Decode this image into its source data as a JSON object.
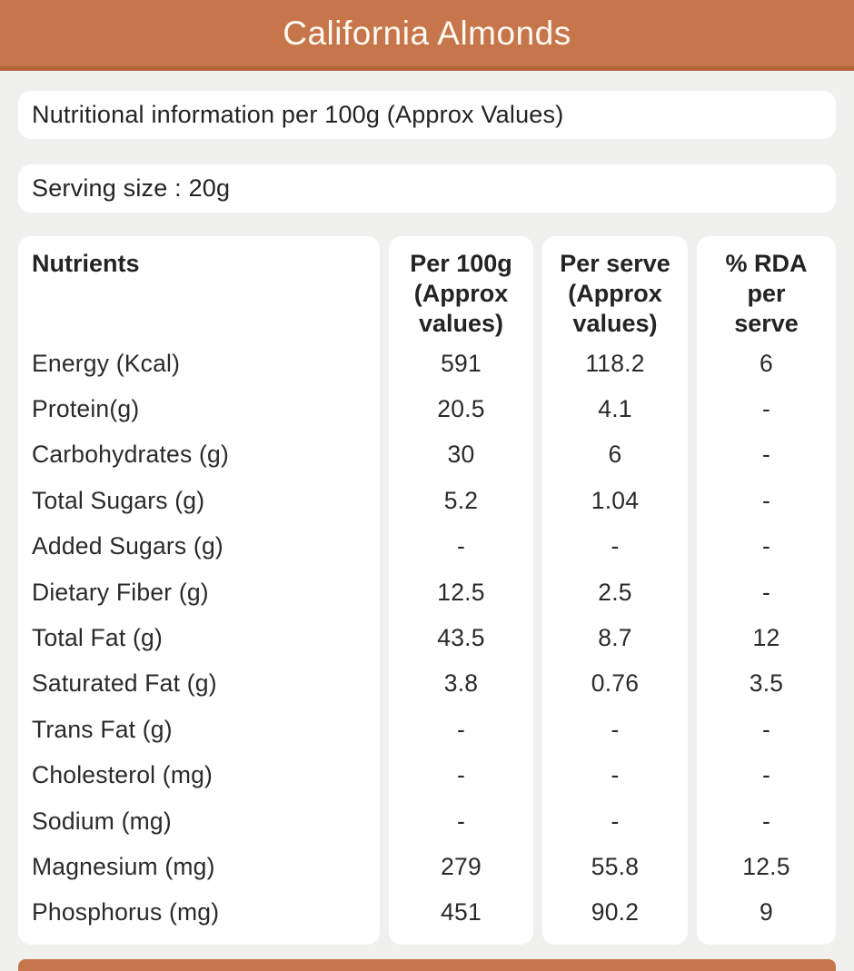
{
  "header": {
    "title": "California Almonds"
  },
  "info_bar": {
    "text": "Nutritional information per 100g (Approx Values)"
  },
  "serving_bar": {
    "text": "Serving size : 20g"
  },
  "table": {
    "columns": [
      {
        "key": "label",
        "label": "Nutrients"
      },
      {
        "key": "per_100g",
        "label": "Per 100g\n(Approx\nvalues)"
      },
      {
        "key": "per_serve",
        "label": "Per serve\n(Approx\nvalues)"
      },
      {
        "key": "rda",
        "label": "% RDA\nper\nserve"
      }
    ],
    "rows": [
      {
        "label": "Energy (Kcal)",
        "per_100g": "591",
        "per_serve": "118.2",
        "rda": "6"
      },
      {
        "label": "Protein(g)",
        "per_100g": "20.5",
        "per_serve": "4.1",
        "rda": "-"
      },
      {
        "label": "Carbohydrates (g)",
        "per_100g": "30",
        "per_serve": "6",
        "rda": "-"
      },
      {
        "label": "Total Sugars (g)",
        "per_100g": "5.2",
        "per_serve": "1.04",
        "rda": "-"
      },
      {
        "label": "Added Sugars (g)",
        "per_100g": "-",
        "per_serve": "-",
        "rda": "-"
      },
      {
        "label": "Dietary Fiber (g)",
        "per_100g": "12.5",
        "per_serve": "2.5",
        "rda": "-"
      },
      {
        "label": "Total Fat (g)",
        "per_100g": "43.5",
        "per_serve": "8.7",
        "rda": "12"
      },
      {
        "label": "Saturated Fat (g)",
        "per_100g": "3.8",
        "per_serve": "0.76",
        "rda": "3.5"
      },
      {
        "label": "Trans Fat (g)",
        "per_100g": "-",
        "per_serve": "-",
        "rda": "-"
      },
      {
        "label": "Cholesterol (mg)",
        "per_100g": "-",
        "per_serve": "-",
        "rda": "-"
      },
      {
        "label": "Sodium (mg)",
        "per_100g": "-",
        "per_serve": "-",
        "rda": "-"
      },
      {
        "label": "Magnesium (mg)",
        "per_100g": "279",
        "per_serve": "55.8",
        "rda": "12.5"
      },
      {
        "label": "Phosphorus (mg)",
        "per_100g": "451",
        "per_serve": "90.2",
        "rda": "9"
      }
    ]
  },
  "colors": {
    "accent_orange": "#c7754a",
    "accent_orange_dark": "#b2653a",
    "page_background": "#f0f0ee",
    "card_background": "#ffffff",
    "text": "#262626"
  }
}
